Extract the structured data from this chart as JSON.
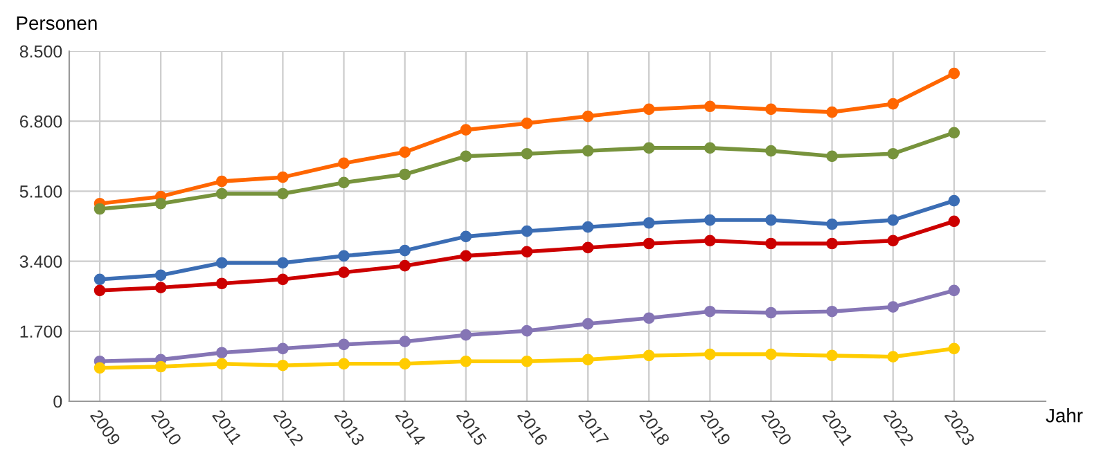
{
  "chart_data": {
    "type": "line",
    "ylabel": "Personen",
    "xlabel": "Jahr",
    "categories": [
      "2009",
      "2010",
      "2011",
      "2012",
      "2013",
      "2014",
      "2015",
      "2016",
      "2017",
      "2018",
      "2019",
      "2020",
      "2021",
      "2022",
      "2023"
    ],
    "ylim": [
      0,
      8500
    ],
    "yticks": [
      {
        "value": 0,
        "label": "0"
      },
      {
        "value": 1700,
        "label": "1.700"
      },
      {
        "value": 3400,
        "label": "3.400"
      },
      {
        "value": 5100,
        "label": "5.100"
      },
      {
        "value": 6800,
        "label": "6.800"
      },
      {
        "value": 8500,
        "label": "8.500"
      }
    ],
    "grid": true,
    "legend": false,
    "marker": "circle",
    "line_style": "solid",
    "series": [
      {
        "color": "#ff6600",
        "values": [
          4800,
          4970,
          5340,
          5440,
          5780,
          6050,
          6590,
          6750,
          6920,
          7090,
          7160,
          7090,
          7020,
          7220,
          7960
        ]
      },
      {
        "color": "#77933c",
        "values": [
          4670,
          4800,
          5040,
          5040,
          5310,
          5510,
          5950,
          6010,
          6080,
          6150,
          6150,
          6080,
          5950,
          6010,
          6520
        ]
      },
      {
        "color": "#3b6db4",
        "values": [
          2960,
          3060,
          3360,
          3360,
          3530,
          3660,
          4000,
          4130,
          4230,
          4330,
          4400,
          4400,
          4300,
          4400,
          4870
        ]
      },
      {
        "color": "#cc0000",
        "values": [
          2690,
          2760,
          2860,
          2960,
          3130,
          3290,
          3530,
          3630,
          3730,
          3830,
          3900,
          3830,
          3830,
          3900,
          4370
        ]
      },
      {
        "color": "#8575b5",
        "values": [
          970,
          1010,
          1180,
          1280,
          1380,
          1450,
          1610,
          1710,
          1880,
          2020,
          2180,
          2150,
          2180,
          2290,
          2690
        ]
      },
      {
        "color": "#ffcc00",
        "values": [
          810,
          840,
          910,
          870,
          910,
          910,
          970,
          970,
          1010,
          1110,
          1140,
          1140,
          1110,
          1080,
          1280
        ]
      }
    ]
  }
}
